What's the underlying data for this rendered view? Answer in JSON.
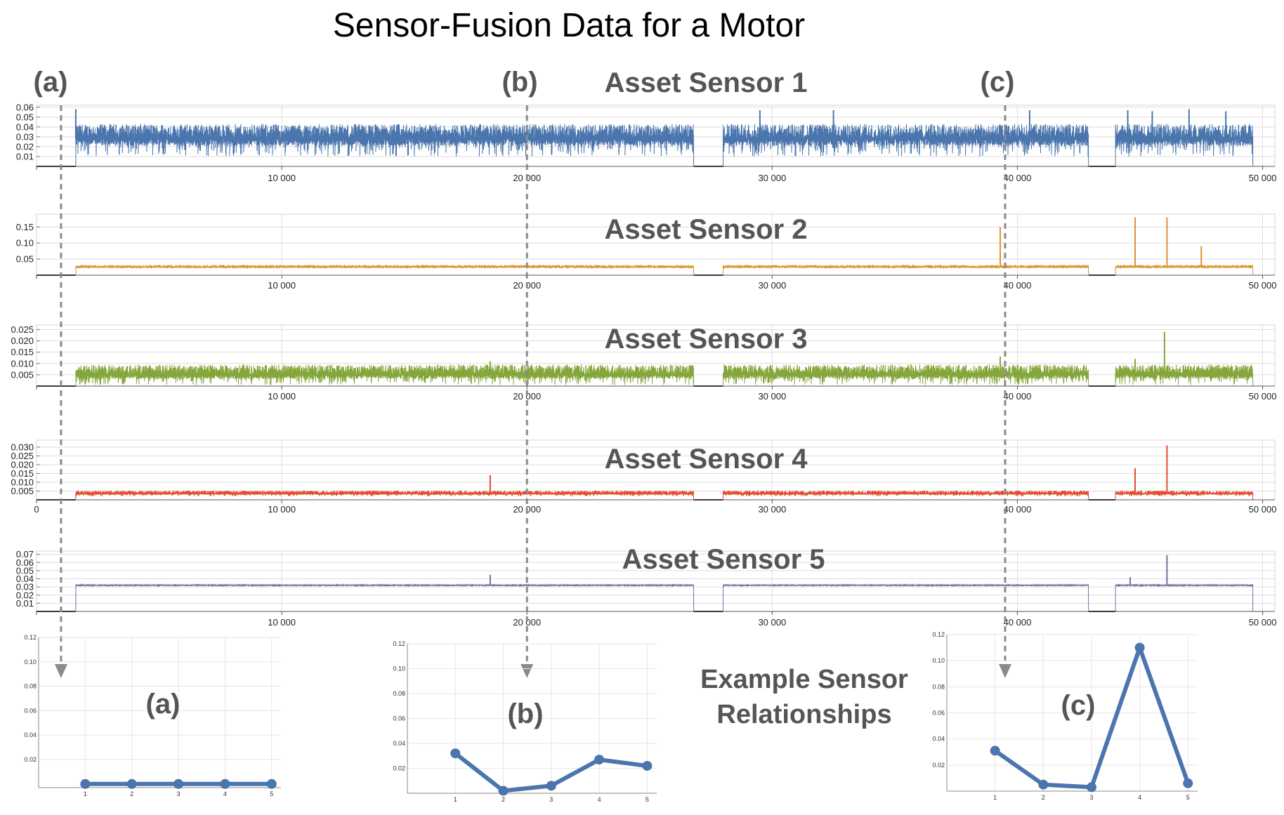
{
  "title": "Sensor-Fusion Data for a Motor",
  "markers": [
    {
      "label": "(a)",
      "x": 1000
    },
    {
      "label": "(b)",
      "x": 20000
    },
    {
      "label": "(c)",
      "x": 39500
    }
  ],
  "relationships_title_line1": "Example Sensor",
  "relationships_title_line2": "Relationships",
  "colors": {
    "sensor1": "#4a75ad",
    "sensor2": "#e0922f",
    "sensor3": "#84a63a",
    "sensor4": "#e64b2e",
    "sensor5": "#7a6ba6",
    "off_line": "#3a3a3a",
    "grid": "#dddddd",
    "marker_arrow": "#8a8a8a",
    "relationship_line": "#4a75ad"
  },
  "chart_data": [
    {
      "type": "line",
      "title": "Asset Sensor 1",
      "series": [
        {
          "name": "",
          "color": "#4a75ad"
        }
      ],
      "x_ticks": [
        0,
        10000,
        20000,
        30000,
        40000,
        50000
      ],
      "x_tick_labels": [
        "",
        "10 000",
        "20 000",
        "30 000",
        "40 000",
        "50 000"
      ],
      "xlim": [
        0,
        50500
      ],
      "y_ticks": [
        0.01,
        0.02,
        0.03,
        0.04,
        0.05,
        0.06
      ],
      "y_tick_labels": [
        "0.01",
        "0.02",
        "0.03",
        "0.04",
        "0.05",
        "0.06"
      ],
      "ylim": [
        0,
        0.062
      ],
      "off_periods": [
        [
          0,
          1600
        ],
        [
          26800,
          28000
        ],
        [
          42900,
          44000
        ],
        [
          49600,
          49600
        ]
      ],
      "baseline": 0.028,
      "noise_high": 0.015,
      "noise_low": 0.018,
      "spikes": [
        [
          1600,
          0.058
        ],
        [
          29500,
          0.057
        ],
        [
          32500,
          0.057
        ],
        [
          40500,
          0.057
        ],
        [
          44500,
          0.057
        ],
        [
          45500,
          0.056
        ],
        [
          47000,
          0.058
        ],
        [
          48500,
          0.056
        ]
      ],
      "grid": true
    },
    {
      "type": "line",
      "title": "Asset Sensor 2",
      "series": [
        {
          "name": "",
          "color": "#e0922f"
        }
      ],
      "x_ticks": [
        0,
        10000,
        20000,
        30000,
        40000,
        50000
      ],
      "x_tick_labels": [
        "",
        "10 000",
        "20 000",
        "30 000",
        "40 000",
        "50 000"
      ],
      "xlim": [
        0,
        50500
      ],
      "y_ticks": [
        0.05,
        0.1,
        0.15
      ],
      "y_tick_labels": [
        "0.05",
        "0.10",
        "0.15"
      ],
      "ylim": [
        0,
        0.19
      ],
      "off_periods": [
        [
          0,
          1600
        ],
        [
          26800,
          28000
        ],
        [
          42900,
          44000
        ]
      ],
      "baseline": 0.025,
      "noise_high": 0.007,
      "noise_low": 0.004,
      "spikes": [
        [
          39300,
          0.15
        ],
        [
          44800,
          0.18
        ],
        [
          46100,
          0.18
        ],
        [
          47500,
          0.09
        ]
      ],
      "grid": true
    },
    {
      "type": "line",
      "title": "Asset Sensor 3",
      "series": [
        {
          "name": "",
          "color": "#84a63a"
        }
      ],
      "x_ticks": [
        0,
        10000,
        20000,
        30000,
        40000,
        50000
      ],
      "x_tick_labels": [
        "",
        "10 000",
        "20 000",
        "30 000",
        "40 000",
        "50 000"
      ],
      "xlim": [
        0,
        50500
      ],
      "y_ticks": [
        0.005,
        0.01,
        0.015,
        0.02,
        0.025
      ],
      "y_tick_labels": [
        "0.005",
        "0.010",
        "0.015",
        "0.020",
        "0.025"
      ],
      "ylim": [
        0,
        0.027
      ],
      "off_periods": [
        [
          0,
          1600
        ],
        [
          26800,
          28000
        ],
        [
          42900,
          44000
        ]
      ],
      "baseline": 0.005,
      "noise_high": 0.0045,
      "noise_low": 0.0045,
      "spikes": [
        [
          18500,
          0.011
        ],
        [
          39300,
          0.013
        ],
        [
          44800,
          0.012
        ],
        [
          46000,
          0.024
        ]
      ],
      "grid": true
    },
    {
      "type": "line",
      "title": "Asset Sensor 4",
      "series": [
        {
          "name": "",
          "color": "#e64b2e"
        }
      ],
      "x_ticks": [
        0,
        10000,
        20000,
        30000,
        40000,
        50000
      ],
      "x_tick_labels": [
        "0",
        "10 000",
        "20 000",
        "30 000",
        "40 000",
        "50 000"
      ],
      "xlim": [
        0,
        50500
      ],
      "y_ticks": [
        0.005,
        0.01,
        0.015,
        0.02,
        0.025,
        0.03
      ],
      "y_tick_labels": [
        "0.005",
        "0.010",
        "0.015",
        "0.020",
        "0.025",
        "0.030"
      ],
      "ylim": [
        0,
        0.034
      ],
      "off_periods": [
        [
          0,
          1600
        ],
        [
          26800,
          28000
        ],
        [
          42900,
          44000
        ]
      ],
      "baseline": 0.0035,
      "noise_high": 0.0018,
      "noise_low": 0.0015,
      "spikes": [
        [
          18500,
          0.014
        ],
        [
          44800,
          0.018
        ],
        [
          46100,
          0.031
        ]
      ],
      "grid": true
    },
    {
      "type": "line",
      "title": "Asset Sensor 5",
      "series": [
        {
          "name": "",
          "color": "#7a6ba6"
        }
      ],
      "x_ticks": [
        0,
        10000,
        20000,
        30000,
        40000,
        50000
      ],
      "x_tick_labels": [
        "",
        "10 000",
        "20 000",
        "30 000",
        "40 000",
        "50 000"
      ],
      "xlim": [
        0,
        50500
      ],
      "y_ticks": [
        0.01,
        0.02,
        0.03,
        0.04,
        0.05,
        0.06,
        0.07
      ],
      "y_tick_labels": [
        "0.01",
        "0.02",
        "0.03",
        "0.04",
        "0.05",
        "0.06",
        "0.07"
      ],
      "ylim": [
        0,
        0.074
      ],
      "off_periods": [
        [
          0,
          1600
        ],
        [
          26800,
          28000
        ],
        [
          42900,
          44000
        ]
      ],
      "baseline": 0.032,
      "noise_high": 0.0012,
      "noise_low": 0.0012,
      "spikes": [
        [
          18500,
          0.045
        ],
        [
          44600,
          0.042
        ],
        [
          46100,
          0.069
        ]
      ],
      "grid": true
    },
    {
      "type": "line",
      "title": "",
      "panel_label": "(a)",
      "x": [
        1,
        2,
        3,
        4,
        5
      ],
      "series": [
        {
          "name": "",
          "values": [
            0,
            0,
            0,
            0,
            0
          ]
        }
      ],
      "x_ticks": [
        1,
        2,
        3,
        4,
        5
      ],
      "x_tick_labels": [
        "1",
        "2",
        "3",
        "4",
        "5"
      ],
      "xlim": [
        0.0,
        5.2
      ],
      "y_ticks": [
        0.02,
        0.04,
        0.06,
        0.08,
        0.1,
        0.12
      ],
      "y_tick_labels": [
        "0.02",
        "0.04",
        "0.06",
        "0.08",
        "0.10",
        "0.12"
      ],
      "ylim": [
        -0.003,
        0.12
      ],
      "grid": true
    },
    {
      "type": "line",
      "title": "",
      "panel_label": "(b)",
      "x": [
        1,
        2,
        3,
        4,
        5
      ],
      "series": [
        {
          "name": "",
          "values": [
            0.032,
            0.002,
            0.006,
            0.027,
            0.022
          ]
        }
      ],
      "x_ticks": [
        1,
        2,
        3,
        4,
        5
      ],
      "x_tick_labels": [
        "1",
        "2",
        "3",
        "4",
        "5"
      ],
      "xlim": [
        0.0,
        5.2
      ],
      "y_ticks": [
        0.02,
        0.04,
        0.06,
        0.08,
        0.1,
        0.12
      ],
      "y_tick_labels": [
        "0.02",
        "0.04",
        "0.06",
        "0.08",
        "0.10",
        "0.12"
      ],
      "ylim": [
        0,
        0.12
      ],
      "grid": true
    },
    {
      "type": "line",
      "title": "",
      "panel_label": "(c)",
      "x": [
        1,
        2,
        3,
        4,
        5
      ],
      "series": [
        {
          "name": "",
          "values": [
            0.031,
            0.005,
            0.003,
            0.11,
            0.006
          ]
        }
      ],
      "x_ticks": [
        1,
        2,
        3,
        4,
        5
      ],
      "x_tick_labels": [
        "1",
        "2",
        "3",
        "4",
        "5"
      ],
      "xlim": [
        0.0,
        5.2
      ],
      "y_ticks": [
        0.02,
        0.04,
        0.06,
        0.08,
        0.1,
        0.12
      ],
      "y_tick_labels": [
        "0.02",
        "0.04",
        "0.06",
        "0.08",
        "0.10",
        "0.12"
      ],
      "ylim": [
        0,
        0.12
      ],
      "grid": true
    }
  ]
}
